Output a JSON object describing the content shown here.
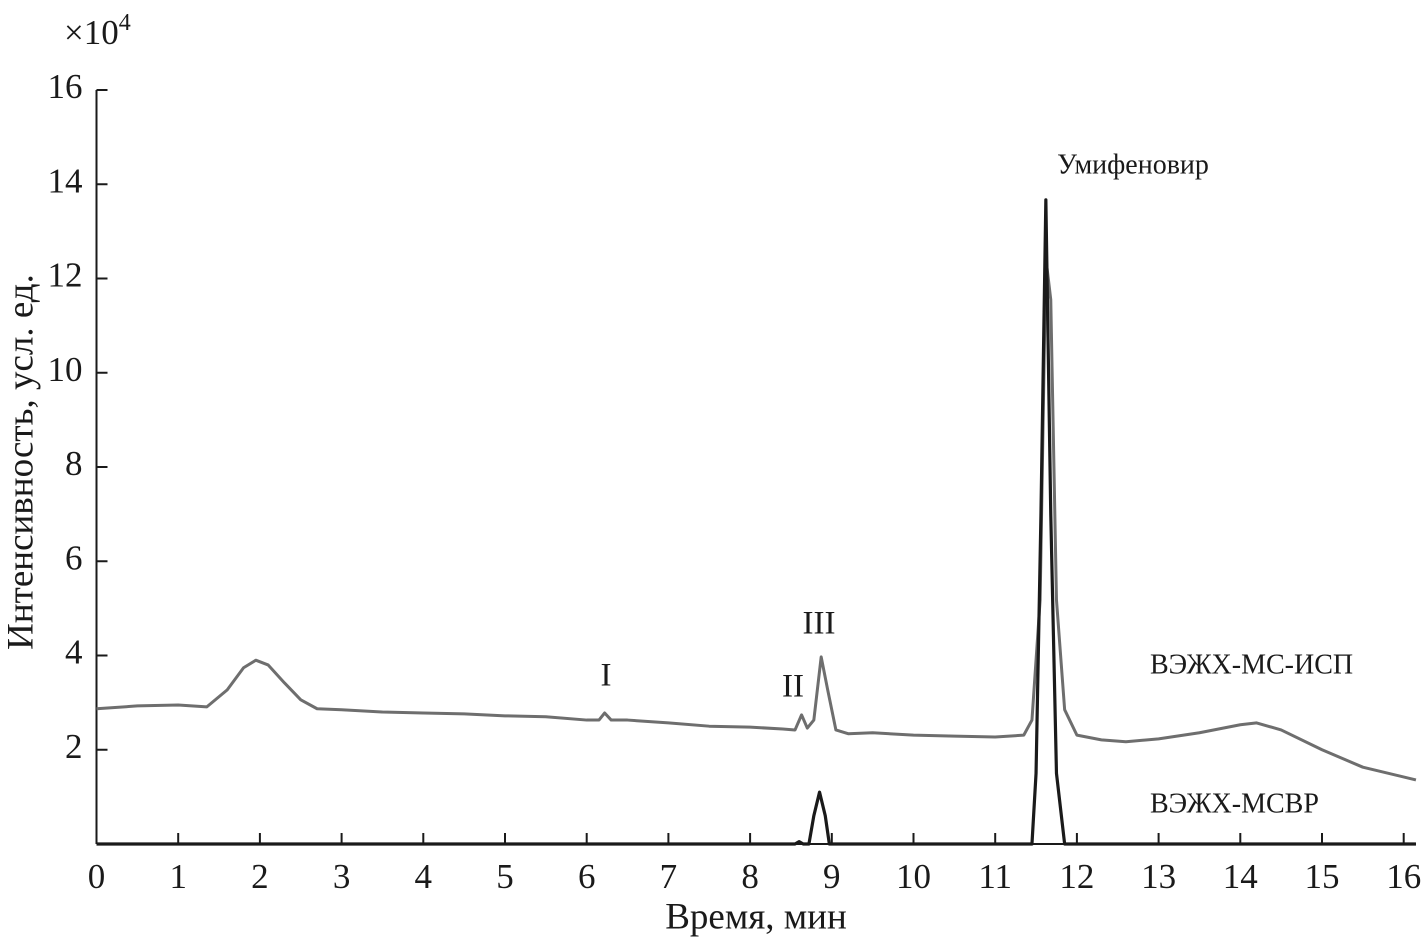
{
  "chart_data": {
    "type": "line",
    "x_label": "Время, мин",
    "y_label": "Интенсивность, усл. ед.",
    "y_multiplier": "×10",
    "y_multiplier_exp": "4",
    "xlim": [
      0,
      16.15
    ],
    "ylim": [
      0,
      16
    ],
    "xticks": [
      0,
      1,
      2,
      3,
      4,
      5,
      6,
      7,
      8,
      9,
      10,
      11,
      12,
      13,
      14,
      15,
      16
    ],
    "yticks": [
      2,
      4,
      6,
      8,
      10,
      12,
      14,
      16
    ],
    "annotations": [
      "I",
      "II",
      "III",
      "Умифеновир"
    ],
    "series": [
      {
        "name": "ВЭЖХ-МС-ИСП",
        "color": "#6e6e6e",
        "x": [
          0,
          0.5,
          1,
          1.35,
          1.6,
          1.8,
          1.95,
          2.1,
          2.3,
          2.5,
          2.7,
          3,
          3.5,
          4,
          4.5,
          5,
          5.5,
          6.0,
          6.15,
          6.22,
          6.3,
          6.5,
          7,
          7.5,
          8,
          8.4,
          8.55,
          8.63,
          8.7,
          8.78,
          8.87,
          8.95,
          9.05,
          9.2,
          9.5,
          10,
          10.5,
          11,
          11.35,
          11.45,
          11.55,
          11.62,
          11.68,
          11.75,
          11.85,
          12,
          12.3,
          12.6,
          13,
          13.5,
          14,
          14.2,
          14.5,
          15,
          15.5,
          16.15
        ],
        "values": [
          2.87,
          2.93,
          2.95,
          2.91,
          3.27,
          3.74,
          3.9,
          3.8,
          3.42,
          3.06,
          2.87,
          2.85,
          2.8,
          2.78,
          2.76,
          2.72,
          2.7,
          2.63,
          2.63,
          2.78,
          2.63,
          2.63,
          2.57,
          2.5,
          2.48,
          2.44,
          2.42,
          2.74,
          2.46,
          2.63,
          3.97,
          3.27,
          2.42,
          2.34,
          2.36,
          2.31,
          2.29,
          2.27,
          2.31,
          2.63,
          5.18,
          12.44,
          11.55,
          5.18,
          2.85,
          2.31,
          2.21,
          2.17,
          2.23,
          2.36,
          2.53,
          2.57,
          2.42,
          2.0,
          1.63,
          1.36
        ]
      },
      {
        "name": "ВЭЖХ-МСВР",
        "color": "#1a1a1a",
        "x": [
          0,
          8.55,
          8.6,
          8.65,
          8.72,
          8.78,
          8.85,
          8.92,
          8.97,
          11.45,
          11.5,
          11.56,
          11.62,
          11.68,
          11.75,
          11.85,
          16.15
        ],
        "values": [
          0,
          0,
          0.05,
          0,
          0,
          0.6,
          1.1,
          0.6,
          0,
          0,
          1.5,
          7,
          13.67,
          7,
          1.5,
          0,
          0
        ]
      }
    ]
  }
}
